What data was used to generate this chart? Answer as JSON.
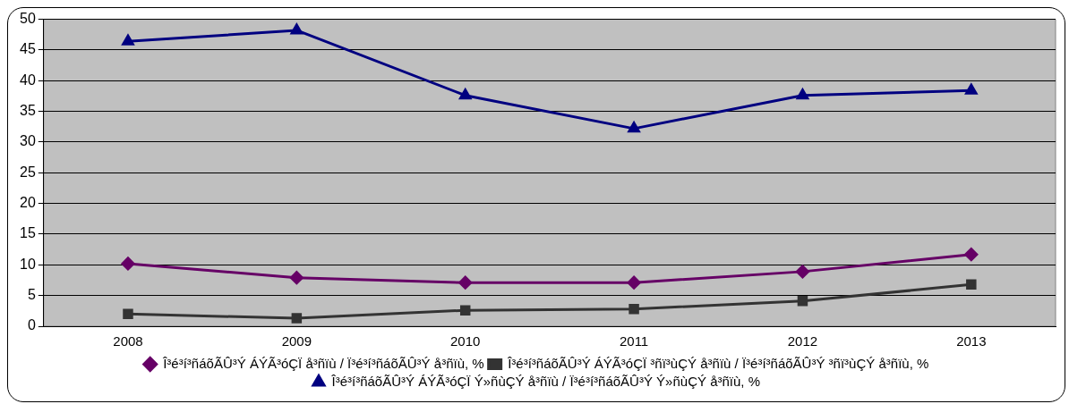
{
  "chart_data": {
    "type": "line",
    "categories": [
      "2008",
      "2009",
      "2010",
      "2011",
      "2012",
      "2013"
    ],
    "series": [
      {
        "name": "Î³é³í³ñáõÃÛ³Ý ÁÝÃ³óÇÏ å³ñïù / Ï³é³í³ñáõÃÛ³Ý å³ñïù, %",
        "color": "#660066",
        "marker": "diamond",
        "values": [
          10.2,
          7.9,
          7.1,
          7.1,
          8.9,
          11.7
        ]
      },
      {
        "name": "Î³é³í³ñáõÃÛ³Ý ÁÝÃ³óÇÏ ³ñï³ùÇÝ å³ñïù / Ï³é³í³ñáõÃÛ³Ý ³ñï³ùÇÝ å³ñïù, %",
        "color": "#333333",
        "marker": "square",
        "values": [
          2.0,
          1.3,
          2.6,
          2.8,
          4.1,
          6.8
        ]
      },
      {
        "name": "Î³é³í³ñáõÃÛ³Ý ÁÝÃ³óÇÏ Ý»ñùÇÝ å³ñïù / Ï³é³í³ñáõÃÛ³Ý Ý»ñùÇÝ å³ñïù, %",
        "color": "#000080",
        "marker": "triangle",
        "values": [
          46.4,
          48.2,
          37.6,
          32.2,
          37.6,
          38.4
        ]
      }
    ],
    "ylim": [
      0,
      50
    ],
    "yticks": [
      0,
      5,
      10,
      15,
      20,
      25,
      30,
      35,
      40,
      45,
      50
    ],
    "grid": "y",
    "legend": "bottom"
  }
}
